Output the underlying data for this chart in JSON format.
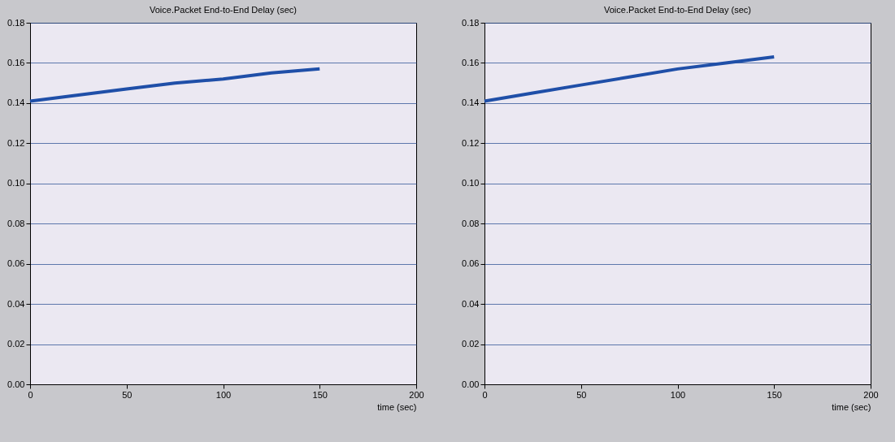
{
  "chart_data": [
    {
      "type": "line",
      "title": "Voice.Packet End-to-End Delay (sec)",
      "xlabel": "time (sec)",
      "x": [
        0,
        25,
        50,
        75,
        100,
        125,
        150
      ],
      "series": [
        {
          "color": "#1f4fa8",
          "values": [
            0.141,
            0.144,
            0.147,
            0.15,
            0.152,
            0.155,
            0.157
          ]
        }
      ],
      "xlim": [
        0,
        200
      ],
      "xticks": [
        0,
        50,
        100,
        150,
        200
      ],
      "ylim": [
        0,
        0.18
      ],
      "yticks": [
        {
          "value": 0,
          "label": "0.00"
        },
        {
          "value": 0.02,
          "label": "0.02"
        },
        {
          "value": 0.04,
          "label": "0.04"
        },
        {
          "value": 0.06,
          "label": "0.06"
        },
        {
          "value": 0.08,
          "label": "0.08"
        },
        {
          "value": 0.1,
          "label": "0.10"
        },
        {
          "value": 0.12,
          "label": "0.12"
        },
        {
          "value": 0.14,
          "label": "0.14"
        },
        {
          "value": 0.16,
          "label": "0.16"
        },
        {
          "value": 0.18,
          "label": "0.18"
        }
      ],
      "grid": "y"
    },
    {
      "type": "line",
      "title": "Voice.Packet End-to-End Delay (sec)",
      "xlabel": "time (sec)",
      "x": [
        0,
        25,
        50,
        75,
        100,
        125,
        150
      ],
      "series": [
        {
          "color": "#1f4fa8",
          "values": [
            0.141,
            0.145,
            0.149,
            0.153,
            0.157,
            0.16,
            0.163
          ]
        }
      ],
      "xlim": [
        0,
        200
      ],
      "xticks": [
        0,
        50,
        100,
        150,
        200
      ],
      "ylim": [
        0,
        0.18
      ],
      "yticks": [
        {
          "value": 0,
          "label": "0.00"
        },
        {
          "value": 0.02,
          "label": "0.02"
        },
        {
          "value": 0.04,
          "label": "0.04"
        },
        {
          "value": 0.06,
          "label": "0.06"
        },
        {
          "value": 0.08,
          "label": "0.08"
        },
        {
          "value": 0.1,
          "label": "0.10"
        },
        {
          "value": 0.12,
          "label": "0.12"
        },
        {
          "value": 0.14,
          "label": "0.14"
        },
        {
          "value": 0.16,
          "label": "0.16"
        },
        {
          "value": 0.18,
          "label": "0.18"
        }
      ],
      "grid": "y"
    }
  ]
}
